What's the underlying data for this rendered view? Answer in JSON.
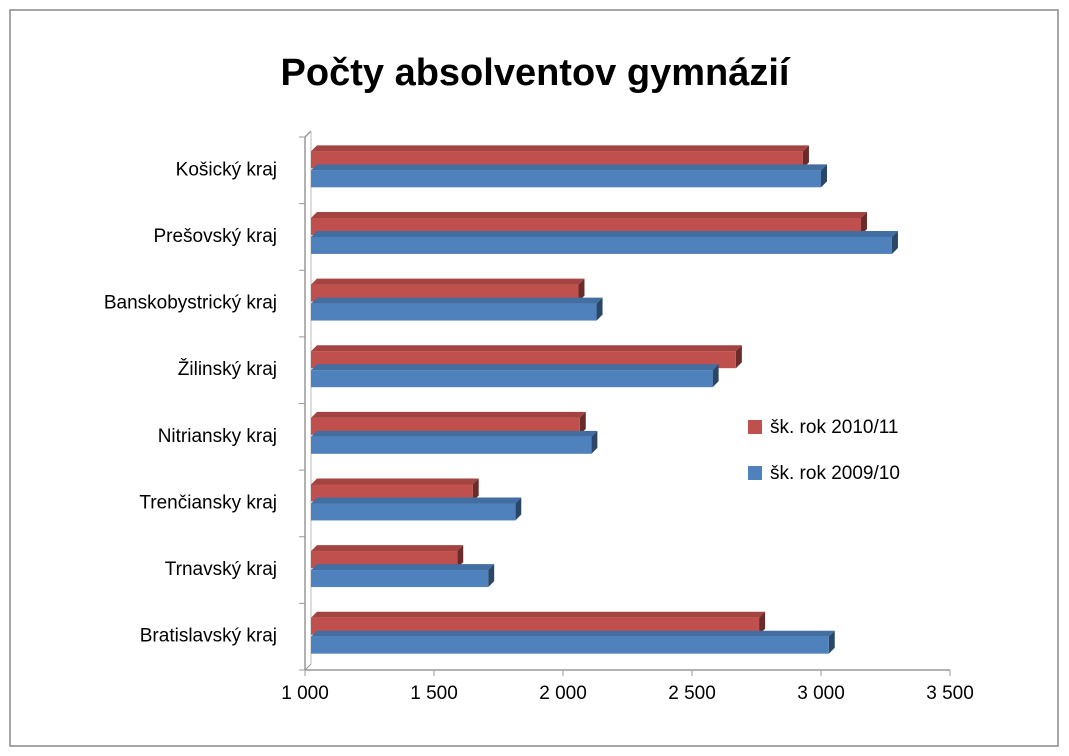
{
  "chart_data": {
    "type": "bar",
    "orientation": "horizontal",
    "title": "Počty absolventov gymnázií",
    "categories": [
      "Bratislavský  kraj",
      "Trnavský kraj",
      "Trenčiansky kraj",
      "Nitriansky  kraj",
      "Žilinský kraj",
      "Banskobystrický kraj",
      "Prešovský kraj",
      "Košický kraj"
    ],
    "series": [
      {
        "name": "šk. rok 2010/11",
        "color": "#c0504d",
        "values": [
          2760,
          1590,
          1650,
          2065,
          2670,
          2060,
          3155,
          2930
        ]
      },
      {
        "name": "šk. rok 2009/10",
        "color": "#4f81bd",
        "values": [
          3030,
          1710,
          1815,
          2110,
          2580,
          2130,
          3275,
          3000
        ]
      }
    ],
    "xlim": [
      1000,
      3500
    ],
    "xticks": [
      {
        "value": 1000,
        "label": "1 000"
      },
      {
        "value": 1500,
        "label": "1 500"
      },
      {
        "value": 2000,
        "label": "2 000"
      },
      {
        "value": 2500,
        "label": "2 500"
      },
      {
        "value": 3000,
        "label": "3 000"
      },
      {
        "value": 3500,
        "label": "3 500"
      }
    ],
    "legend": "right"
  }
}
